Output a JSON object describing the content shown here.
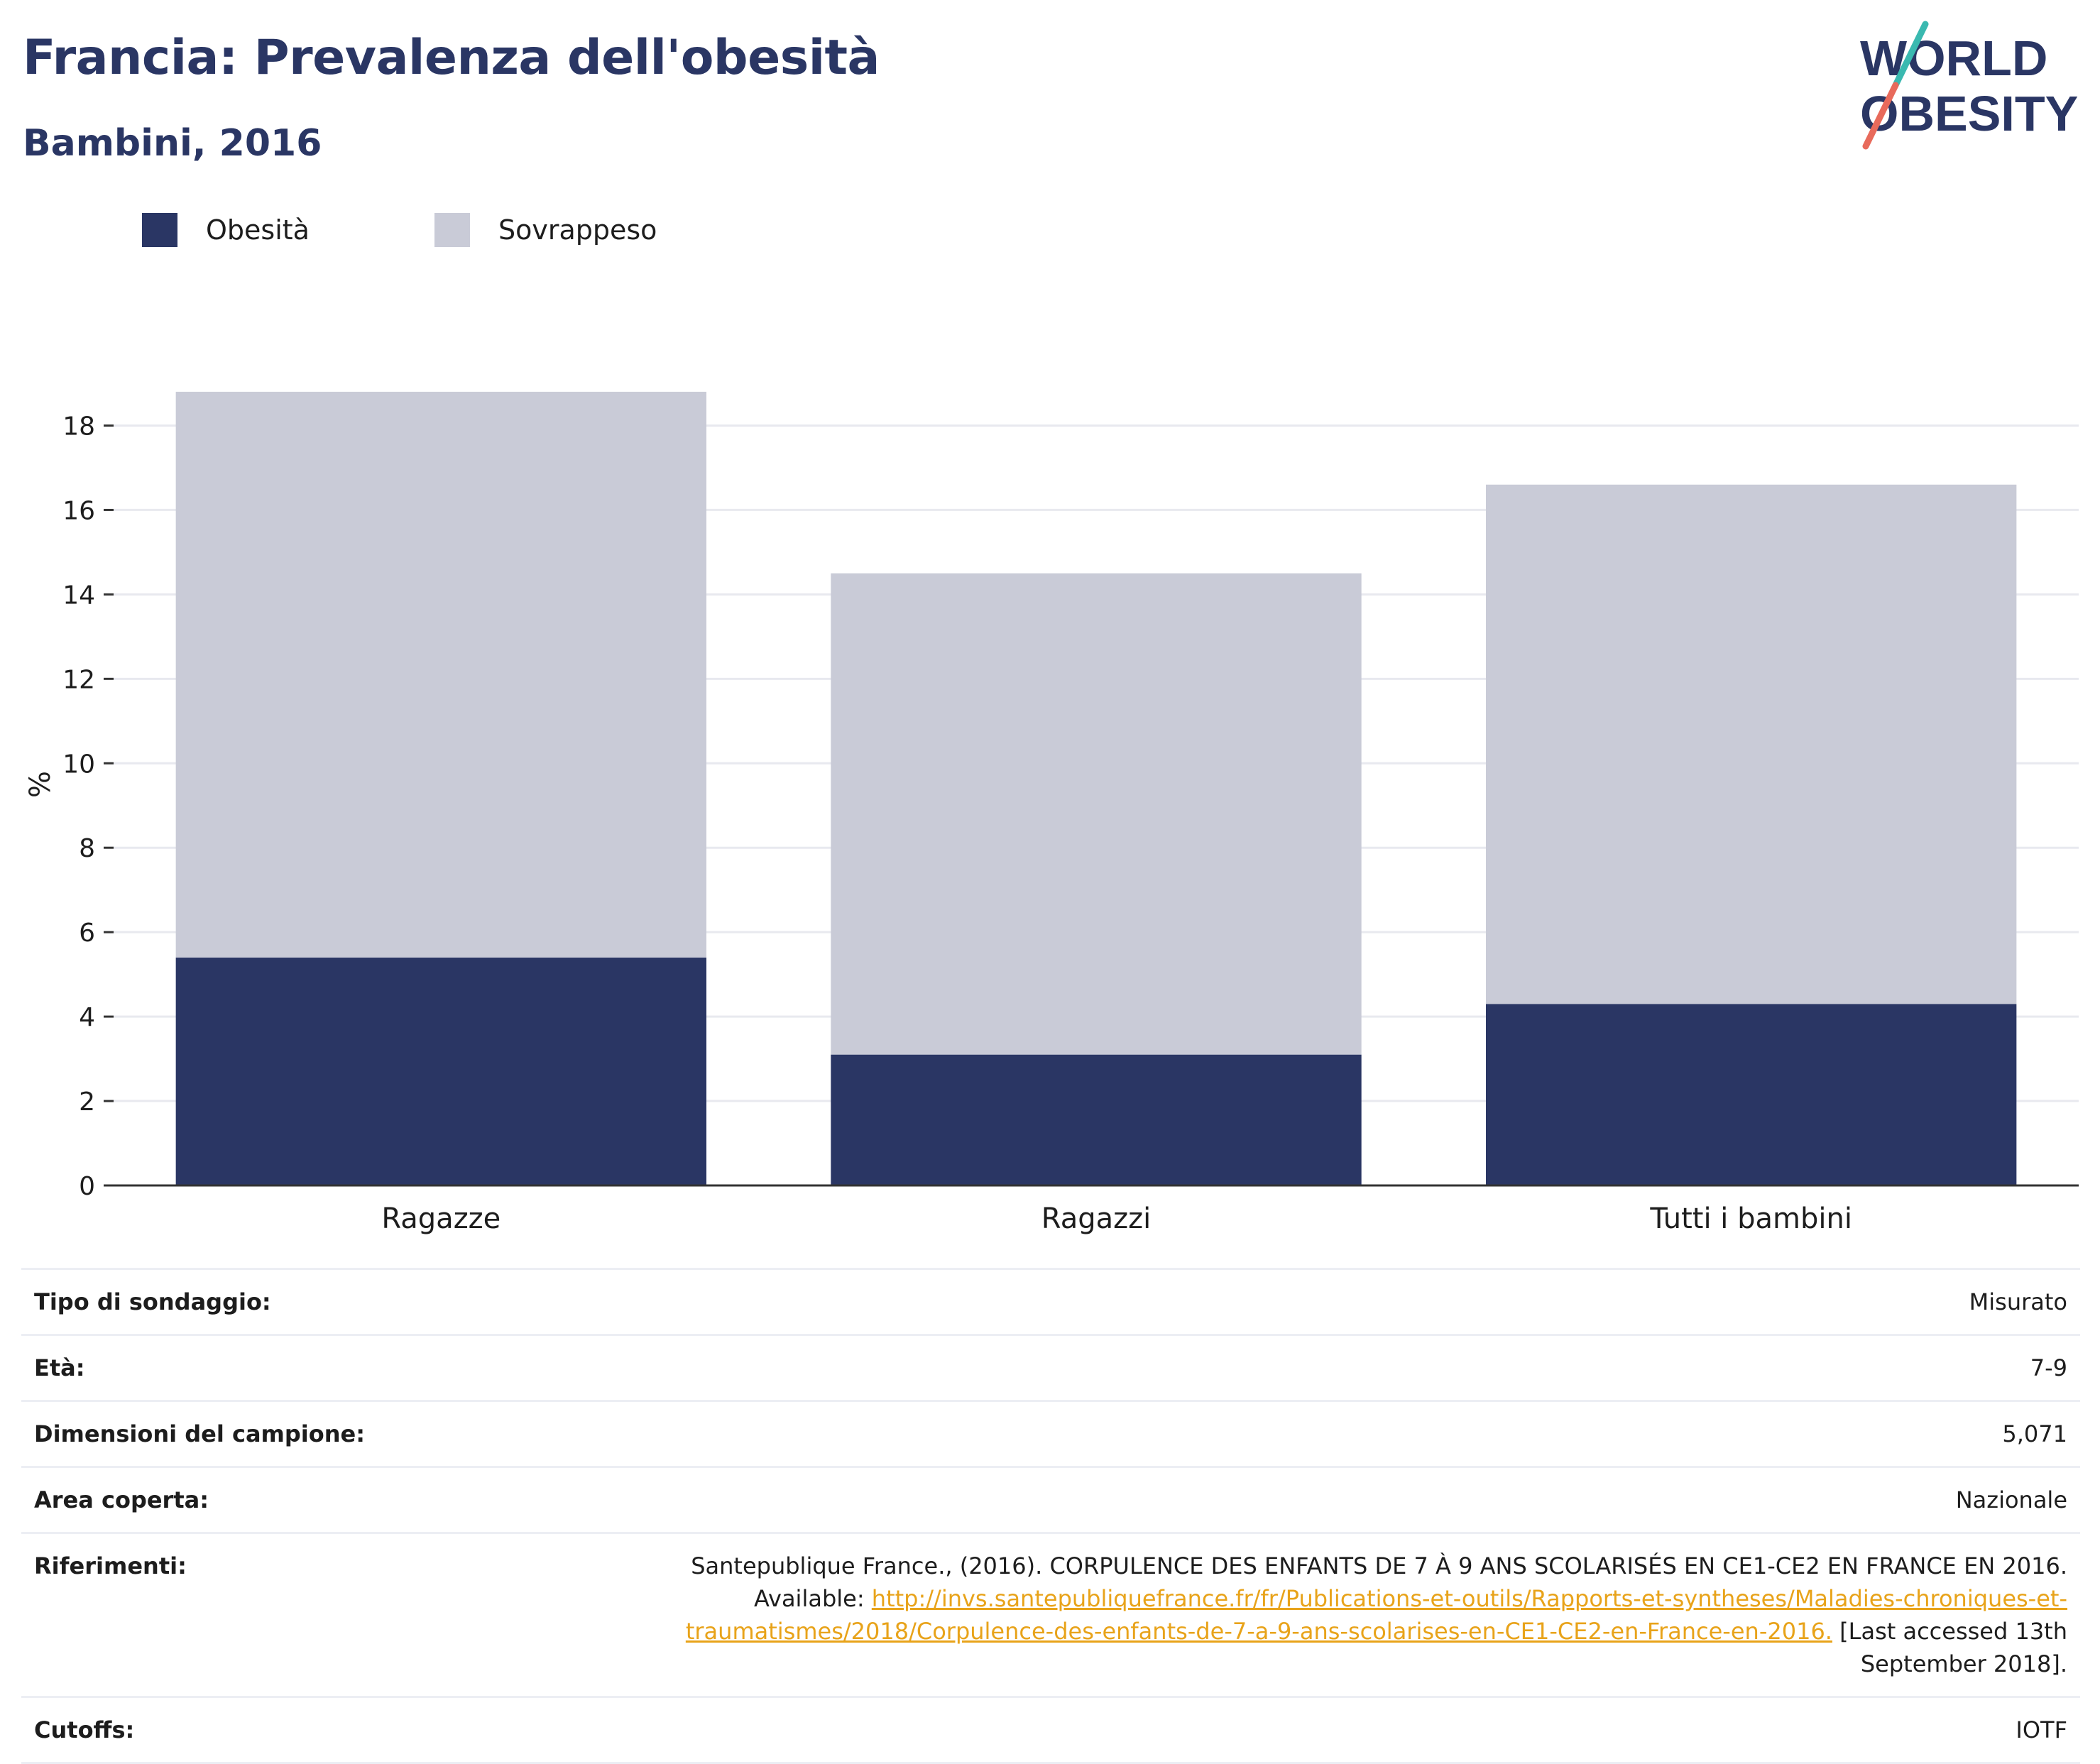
{
  "header": {
    "title": "Francia: Prevalenza dell'obesità",
    "subtitle": "Bambini, 2016"
  },
  "logo": {
    "line1": "WORLD",
    "line2": "OBESITY",
    "colors": {
      "text": "#2a3664",
      "slash_top": "#3ab9b0",
      "slash_bottom": "#e86a5b"
    }
  },
  "legend": [
    {
      "label": "Obesità",
      "color": "#2a3664"
    },
    {
      "label": "Sovrappeso",
      "color": "#c9cbd7"
    }
  ],
  "chart_data": {
    "type": "bar",
    "stacked": true,
    "categories": [
      "Ragazze",
      "Ragazzi",
      "Tutti i bambini"
    ],
    "series": [
      {
        "name": "Obesità",
        "color": "#2a3664",
        "values": [
          5.4,
          3.1,
          4.3
        ]
      },
      {
        "name": "Sovrappeso",
        "color": "#c9cbd7",
        "values": [
          13.4,
          11.4,
          12.3
        ]
      }
    ],
    "ylabel": "%",
    "xlabel": "",
    "ylim": [
      0,
      19
    ],
    "yticks": [
      0,
      2,
      4,
      6,
      8,
      10,
      12,
      14,
      16,
      18
    ],
    "grid": true,
    "legend_position": "top-left"
  },
  "info": {
    "survey_type": {
      "label": "Tipo di sondaggio:",
      "value": "Misurato"
    },
    "age": {
      "label": "Età:",
      "value": "7-9"
    },
    "sample_size": {
      "label": "Dimensioni del campione:",
      "value": "5,071"
    },
    "area": {
      "label": "Area coperta:",
      "value": "Nazionale"
    },
    "references": {
      "label": "Riferimenti:",
      "text_line1": "Santepublique France., (2016). CORPULENCE DES ENFANTS DE 7 À 9 ANS SCOLARISÉS EN CE1-CE2 EN FRANCE EN 2016.",
      "available_prefix": "Available: ",
      "link_part1": "http://invs.santepubliquefrance.fr/fr/Publications-et-outils/Rapports-et-syntheses/Maladies-chroniques-et-",
      "link_part2": "traumatismes/2018/Corpulence-des-enfants-de-7-a-9-ans-scolarises-en-CE1-CE2-en-France-en-2016.",
      "accessed_part1": " [Last accessed 13th",
      "accessed_part2": "September 2018]."
    },
    "cutoffs": {
      "label": "Cutoffs:",
      "value": "IOTF"
    }
  }
}
